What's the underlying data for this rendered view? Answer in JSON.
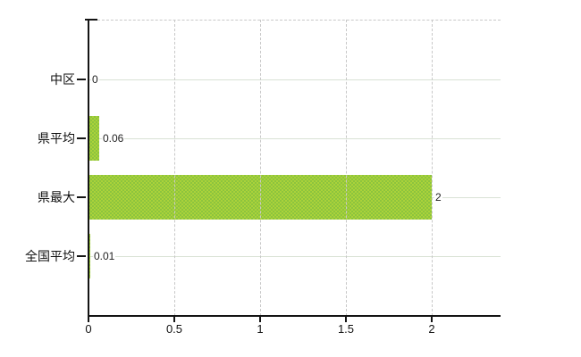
{
  "chart_data": {
    "type": "bar",
    "orientation": "horizontal",
    "title": "",
    "categories": [
      "中区",
      "県平均",
      "県最大",
      "全国平均"
    ],
    "values": [
      0,
      0.06,
      2,
      0.01
    ],
    "value_labels": [
      "0",
      "0.06",
      "2",
      "0.01"
    ],
    "series": [
      {
        "name": "value",
        "values": [
          0,
          0.06,
          2,
          0.01
        ]
      }
    ],
    "x_ticks": [
      {
        "value": 0,
        "label": "0"
      },
      {
        "value": 0.5,
        "label": "0.5"
      },
      {
        "value": 1,
        "label": "1"
      },
      {
        "value": 1.5,
        "label": "1.5"
      },
      {
        "value": 2,
        "label": "2"
      }
    ],
    "xlabel": "",
    "ylabel": "",
    "xlim": [
      0,
      2.4
    ],
    "grid": true,
    "legend": "none",
    "colors": {
      "bar": "#9ccb3a",
      "bar_texture_dark": "#8cc43e",
      "bar_texture_light": "#abd23a",
      "axis": "#141414",
      "gridline_dashed": "#c8c8c8",
      "row_line": "#d9e2d5",
      "category_text": "#111111",
      "value_text": "#222222",
      "background": "#ffffff"
    }
  }
}
